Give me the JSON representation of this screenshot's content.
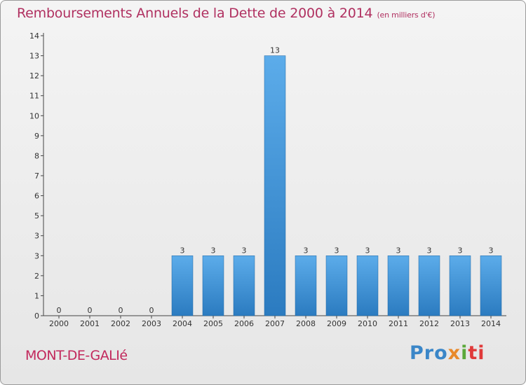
{
  "title": {
    "main": "Remboursements Annuels de la Dette de 2000 à 2014",
    "unit": "(en milliers d'€)"
  },
  "commune": "MONT-DE-GALIé",
  "logo": {
    "p1": "Pro",
    "p2": "x",
    "p3": "i",
    "p4": "ti"
  },
  "colors": {
    "bar": "#3a8fd6",
    "title": "#b03060",
    "axis": "#333333"
  },
  "chart_data": {
    "type": "bar",
    "categories": [
      "2000",
      "2001",
      "2002",
      "2003",
      "2004",
      "2005",
      "2006",
      "2007",
      "2008",
      "2009",
      "2010",
      "2011",
      "2012",
      "2013",
      "2014"
    ],
    "values": [
      0,
      0,
      0,
      0,
      3,
      3,
      3,
      13,
      3,
      3,
      3,
      3,
      3,
      3,
      3
    ],
    "ylim": [
      0,
      14
    ],
    "yticks": [
      "0",
      "1",
      "2",
      "3",
      "3",
      "5",
      "6",
      "7",
      "8",
      "9",
      "10",
      "11",
      "12",
      "13",
      "14"
    ],
    "grid": false,
    "data_labels": true
  }
}
